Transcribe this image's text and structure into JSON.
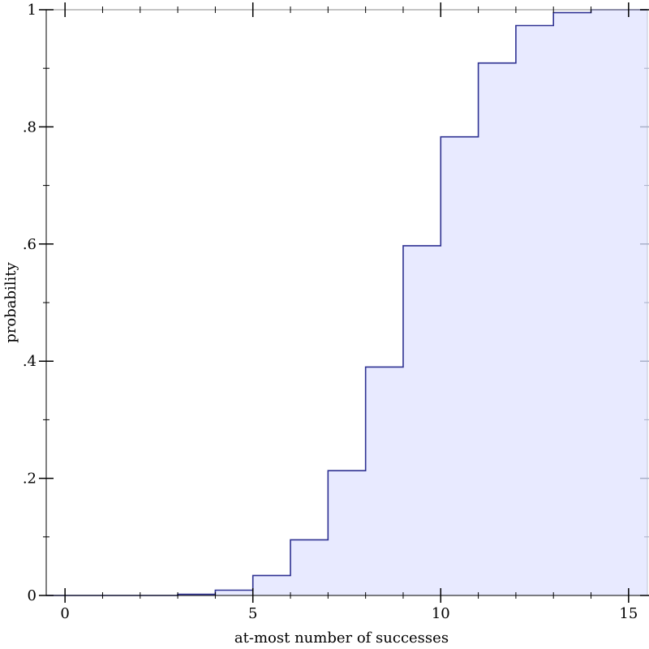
{
  "chart_data": {
    "type": "area",
    "xlabel": "at-most number of successes",
    "ylabel": "probability",
    "xlim": [
      -0.5,
      15.5
    ],
    "ylim": [
      0,
      1
    ],
    "x_ticks": [
      0,
      5,
      10,
      15
    ],
    "x_minor_ticks": [
      1,
      2,
      3,
      4,
      6,
      7,
      8,
      9,
      11,
      12,
      13,
      14
    ],
    "y_ticks": [
      {
        "value": 0,
        "label": "0"
      },
      {
        "value": 0.2,
        "label": ".2"
      },
      {
        "value": 0.4,
        "label": ".4"
      },
      {
        "value": 0.6,
        "label": ".6"
      },
      {
        "value": 0.8,
        "label": ".8"
      },
      {
        "value": 1,
        "label": "1"
      }
    ],
    "y_minor_ticks": [
      0.1,
      0.3,
      0.5,
      0.7,
      0.9
    ],
    "series": [
      {
        "step": "post",
        "x": [
          -0.5,
          0,
          1,
          2,
          3,
          4,
          5,
          6,
          7,
          8,
          9,
          10,
          11,
          12,
          13,
          14,
          15,
          15.5
        ],
        "values": [
          0,
          0,
          0,
          0,
          0.002,
          0.009,
          0.034,
          0.095,
          0.213,
          0.39,
          0.597,
          0.783,
          0.909,
          0.973,
          0.995,
          1.0,
          1.0,
          1.0
        ]
      }
    ],
    "colors": {
      "line": "#2e3192",
      "fill": "#e8eaff",
      "axis": "#000000",
      "far_axis_ticks": "#a9b0c8"
    }
  }
}
